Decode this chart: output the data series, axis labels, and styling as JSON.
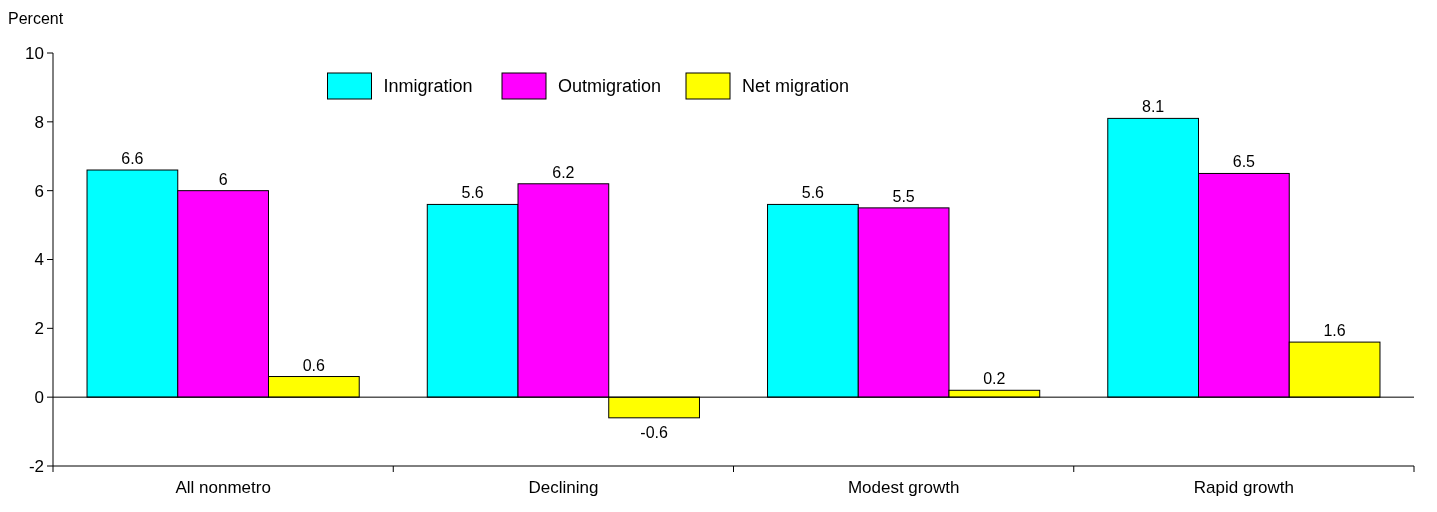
{
  "chart_data": {
    "type": "bar",
    "ylabel": "Percent",
    "categories": [
      "All nonmetro",
      "Declining",
      "Modest growth",
      "Rapid growth"
    ],
    "series": [
      {
        "name": "Inmigration",
        "color": "#00ffff",
        "values": [
          6.6,
          5.6,
          5.6,
          8.1
        ]
      },
      {
        "name": "Outmigration",
        "color": "#ff00ff",
        "values": [
          6,
          6.2,
          5.5,
          6.5
        ]
      },
      {
        "name": "Net migration",
        "color": "#ffff00",
        "values": [
          0.6,
          -0.6,
          0.2,
          1.6
        ]
      }
    ],
    "ylim": [
      -2,
      10
    ],
    "yticks": [
      -2,
      0,
      2,
      4,
      6,
      8,
      10
    ],
    "ref_lines": [
      {
        "axis": "y",
        "value": 0
      }
    ],
    "data_labels": true,
    "legend": "top",
    "grid": false
  }
}
